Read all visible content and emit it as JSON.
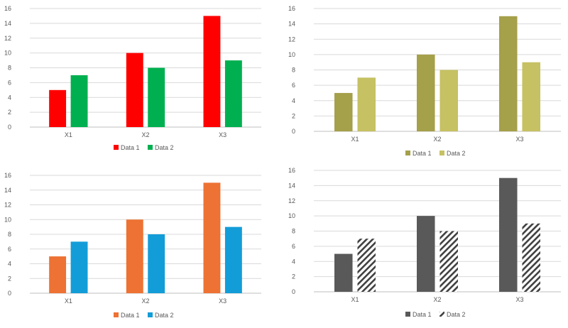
{
  "chart_data": [
    {
      "type": "bar",
      "categories": [
        "X1",
        "X2",
        "X3"
      ],
      "series": [
        {
          "name": "Data 1",
          "values": [
            5,
            10,
            15
          ],
          "color": "#ff0000"
        },
        {
          "name": "Data 2",
          "values": [
            7,
            8,
            9
          ],
          "color": "#00b050"
        }
      ],
      "ylim": [
        0,
        16
      ],
      "yticks": [
        0,
        2,
        4,
        6,
        8,
        10,
        12,
        14,
        16
      ],
      "grid": true,
      "legend": "bottom"
    },
    {
      "type": "bar",
      "categories": [
        "X1",
        "X2",
        "X3"
      ],
      "series": [
        {
          "name": "Data 1",
          "values": [
            5,
            10,
            15
          ],
          "color": "#a5a04a"
        },
        {
          "name": "Data 2",
          "values": [
            7,
            8,
            9
          ],
          "color": "#c6c162"
        }
      ],
      "ylim": [
        0,
        16
      ],
      "yticks": [
        0,
        2,
        4,
        6,
        8,
        10,
        12,
        14,
        16
      ],
      "grid": true,
      "legend": "bottom"
    },
    {
      "type": "bar",
      "categories": [
        "X1",
        "X2",
        "X3"
      ],
      "series": [
        {
          "name": "Data 1",
          "values": [
            5,
            10,
            15
          ],
          "color": "#ed7233"
        },
        {
          "name": "Data 2",
          "values": [
            7,
            8,
            9
          ],
          "color": "#139dd8"
        }
      ],
      "ylim": [
        0,
        16
      ],
      "yticks": [
        0,
        2,
        4,
        6,
        8,
        10,
        12,
        14,
        16
      ],
      "grid": true,
      "legend": "bottom"
    },
    {
      "type": "bar",
      "categories": [
        "X1",
        "X2",
        "X3"
      ],
      "series": [
        {
          "name": "Data 1",
          "values": [
            5,
            10,
            15
          ],
          "color": "#595959",
          "pattern": "solid"
        },
        {
          "name": "Data 2",
          "values": [
            7,
            8,
            9
          ],
          "color": "#404040",
          "pattern": "diagonal-hatch"
        }
      ],
      "ylim": [
        0,
        16
      ],
      "yticks": [
        0,
        2,
        4,
        6,
        8,
        10,
        12,
        14,
        16
      ],
      "grid": true,
      "legend": "bottom"
    }
  ]
}
